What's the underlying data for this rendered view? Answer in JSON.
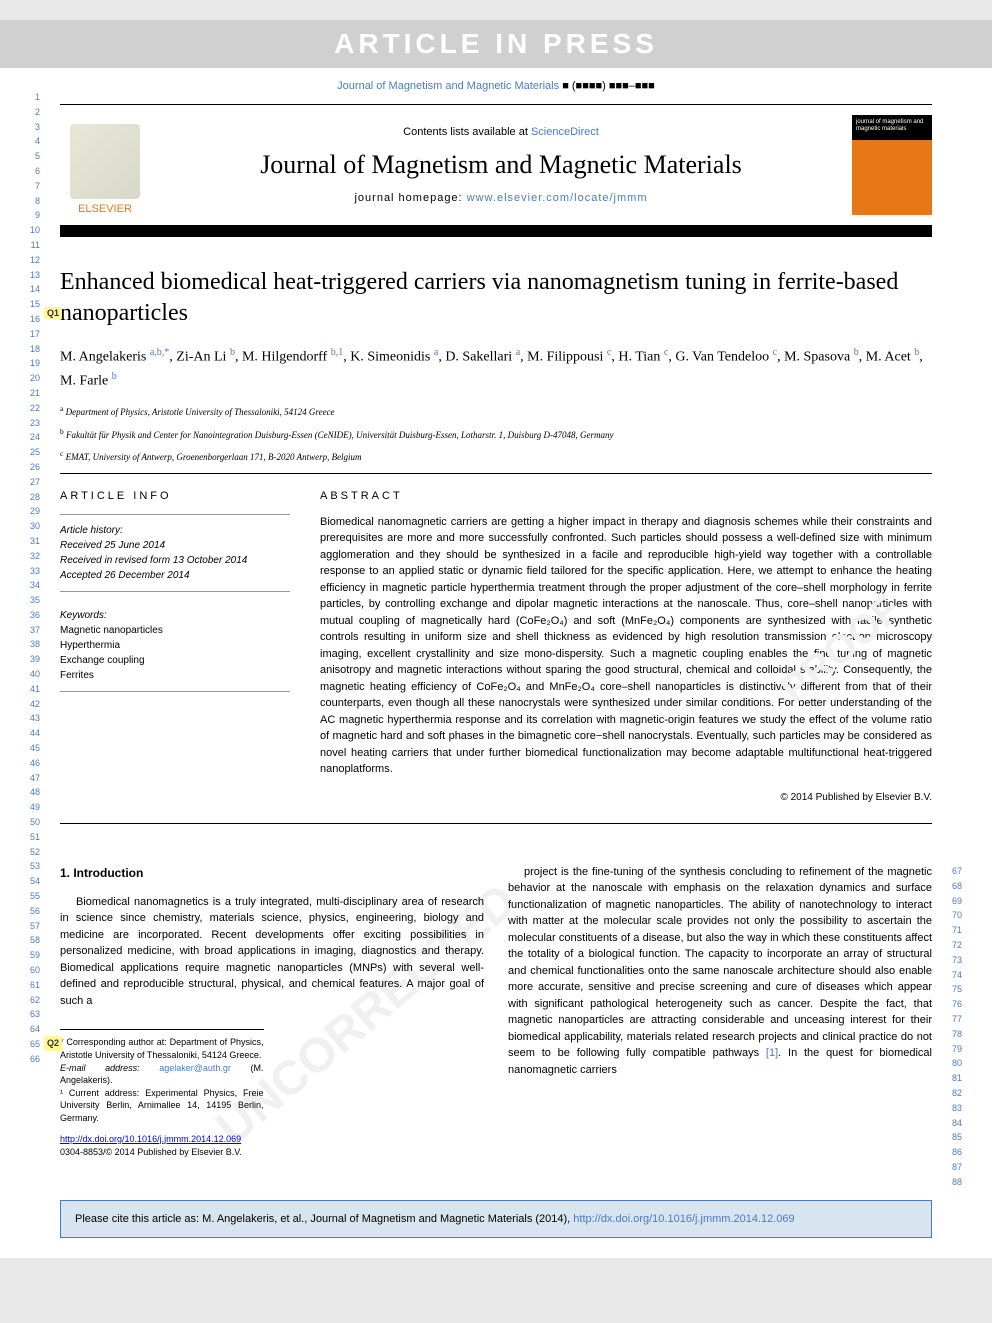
{
  "banner": "ARTICLE IN PRESS",
  "journal_ref": {
    "name": "Journal of Magnetism and Magnetic Materials",
    "vol": "■ (■■■■) ■■■–■■■"
  },
  "header": {
    "contents_prefix": "Contents lists available at ",
    "contents_link": "ScienceDirect",
    "journal_title": "Journal of Magnetism and Magnetic Materials",
    "homepage_prefix": "journal homepage: ",
    "homepage_url": "www.elsevier.com/locate/jmmm",
    "publisher": "ELSEVIER",
    "cover_text": "journal of magnetism and magnetic materials"
  },
  "title": "Enhanced biomedical heat-triggered carriers via nanomagnetism tuning in ferrite-based nanoparticles",
  "authors_html": "M. Angelakeris <sup>a,b,*</sup>, Zi-An Li <sup>b</sup>, M. Hilgendorff <sup>b,1</sup>, K. Simeonidis <sup>a</sup>, D. Sakellari <sup>a</sup>, M. Filippousi <sup>c</sup>, H. Tian <sup>c</sup>, G. Van Tendeloo <sup>c</sup>, M. Spasova <sup>b</sup>, M. Acet <sup>b</sup>, M. Farle <sup>b</sup>",
  "affiliations": [
    {
      "sup": "a",
      "text": "Department of Physics, Aristotle University of Thessaloniki, 54124 Greece"
    },
    {
      "sup": "b",
      "text": "Fakultät für Physik and Center for Nanointegration Duisburg-Essen (CeNIDE), Universität Duisburg-Essen, Lotharstr. 1, Duisburg D-47048, Germany"
    },
    {
      "sup": "c",
      "text": "EMAT, University of Antwerp, Groenenborgerlaan 171, B-2020 Antwerp, Belgium"
    }
  ],
  "article_info": {
    "label": "ARTICLE INFO",
    "history_label": "Article history:",
    "received": "Received 25 June 2014",
    "revised": "Received in revised form 13 October 2014",
    "accepted": "Accepted 26 December 2014",
    "keywords_label": "Keywords:",
    "keywords": [
      "Magnetic nanoparticles",
      "Hyperthermia",
      "Exchange coupling",
      "Ferrites"
    ]
  },
  "abstract": {
    "label": "ABSTRACT",
    "text": "Biomedical nanomagnetic carriers are getting a higher impact in therapy and diagnosis schemes while their constraints and prerequisites are more and more successfully confronted. Such particles should possess a well-defined size with minimum agglomeration and they should be synthesized in a facile and reproducible high-yield way together with a controllable response to an applied static or dynamic field tailored for the specific application. Here, we attempt to enhance the heating efficiency in magnetic particle hyperthermia treatment through the proper adjustment of the core–shell morphology in ferrite particles, by controlling exchange and dipolar magnetic interactions at the nanoscale. Thus, core–shell nanoparticles with mutual coupling of magnetically hard (CoFe₂O₄) and soft (MnFe₂O₄) components are synthesized with facile synthetic controls resulting in uniform size and shell thickness as evidenced by high resolution transmission electron microscopy imaging, excellent crystallinity and size mono-dispersity. Such a magnetic coupling enables the fine tuning of magnetic anisotropy and magnetic interactions without sparing the good structural, chemical and colloidal stability. Consequently, the magnetic heating efficiency of CoFe₂O₄ and MnFe₂O₄ core–shell nanoparticles is distinctively different from that of their counterparts, even though all these nanocrystals were synthesized under similar conditions. For better understanding of the AC magnetic hyperthermia response and its correlation with magnetic-origin features we study the effect of the volume ratio of magnetic hard and soft phases in the bimagnetic core−shell nanocrystals. Eventually, such particles may be considered as novel heating carriers that under further biomedical functionalization may become adaptable multifunctional heat-triggered nanoplatforms.",
    "copyright": "© 2014 Published by Elsevier B.V."
  },
  "intro": {
    "heading": "1. Introduction",
    "col1": "Biomedical nanomagnetics is a truly integrated, multi-disciplinary area of research in science since chemistry, materials science, physics, engineering, biology and medicine are incorporated. Recent developments offer exciting possibilities in personalized medicine, with broad applications in imaging, diagnostics and therapy. Biomedical applications require magnetic nanoparticles (MNPs) with several well-defined and reproducible structural, physical, and chemical features. A major goal of such a",
    "col2": "project is the fine-tuning of the synthesis concluding to refinement of the magnetic behavior at the nanoscale with emphasis on the relaxation dynamics and surface functionalization of magnetic nanoparticles. The ability of nanotechnology to interact with matter at the molecular scale provides not only the possibility to ascertain the molecular constituents of a disease, but also the way in which these constituents affect the totality of a biological function. The capacity to incorporate an array of structural and chemical functionalities onto the same nanoscale architecture should also enable more accurate, sensitive and precise screening and cure of diseases which appear with significant pathological heterogeneity such as cancer. Despite the fact, that magnetic nanoparticles are attracting considerable and unceasing interest for their biomedical applicability, materials related research projects and clinical practice do not seem to be following fully compatible pathways [1]. In the quest for biomedical nanomagnetic carriers"
  },
  "footnotes": {
    "corresponding": "* Corresponding author at: Department of Physics, Aristotle University of Thessaloniki, 54124 Greece.",
    "email_label": "E-mail address: ",
    "email": "agelaker@auth.gr",
    "email_name": " (M. Angelakeris).",
    "addr1": "¹ Current address: Experimental Physics, Freie University Berlin, Arnimallee 14, 14195 Berlin, Germany."
  },
  "doi": "http://dx.doi.org/10.1016/j.jmmm.2014.12.069",
  "issn": "0304-8853/© 2014 Published by Elsevier B.V.",
  "citation": {
    "prefix": "Please cite this article as: M. Angelakeris, et al., Journal of Magnetism and Magnetic Materials (2014), ",
    "link": "http://dx.doi.org/10.1016/j.jmmm.2014.12.069"
  },
  "q_markers": {
    "q1": "Q1",
    "q2": "Q2"
  },
  "line_numbers": {
    "left_start": 1,
    "left_end": 66,
    "right_start": 67,
    "right_end": 88
  },
  "colors": {
    "link": "#4a7bc4",
    "orange": "#e67817",
    "highlight": "#fff799",
    "citebox_bg": "#d8e4f0"
  }
}
